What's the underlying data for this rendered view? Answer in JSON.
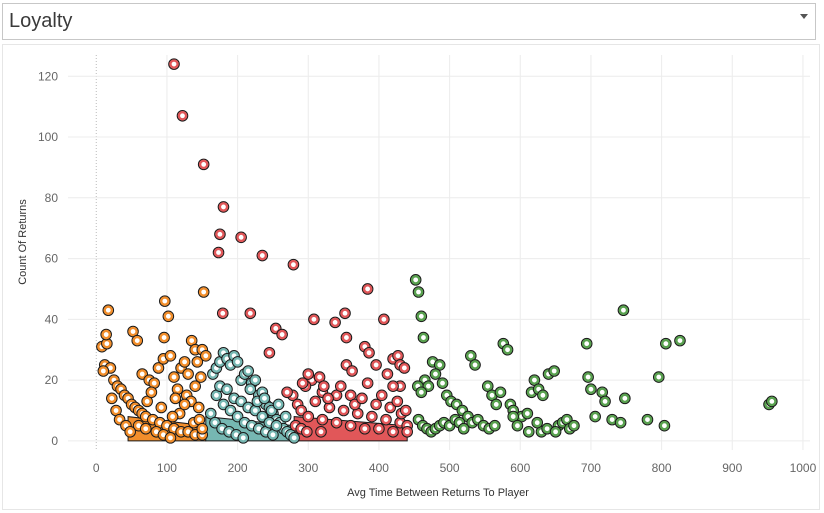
{
  "header": {
    "title": "Loyalty"
  },
  "colors": {
    "orange": "#f28e2b",
    "teal": "#76b7b2",
    "red": "#e15759",
    "green": "#59a14f",
    "outline": "#1a1a1a",
    "grid": "#ececec"
  },
  "chart_data": {
    "type": "scatter",
    "xlabel": "Avg Time Between Returns To Player",
    "ylabel": "Count Of Returns",
    "xlim": [
      -40,
      1010
    ],
    "ylim": [
      -3,
      127
    ],
    "x_ticks": [
      0,
      100,
      200,
      300,
      400,
      500,
      600,
      700,
      800,
      900,
      1000
    ],
    "y_ticks": [
      0,
      20,
      40,
      60,
      80,
      100,
      120
    ],
    "grid": true,
    "legend": "none",
    "series": [
      {
        "color_key": "orange",
        "points": [
          [
            8,
            31
          ],
          [
            12,
            25
          ],
          [
            15,
            32
          ],
          [
            14,
            35
          ],
          [
            17,
            43
          ],
          [
            20,
            24
          ],
          [
            10,
            23
          ],
          [
            25,
            20
          ],
          [
            30,
            18
          ],
          [
            35,
            17
          ],
          [
            40,
            15
          ],
          [
            45,
            14
          ],
          [
            50,
            12
          ],
          [
            55,
            11
          ],
          [
            60,
            10
          ],
          [
            65,
            9
          ],
          [
            70,
            8
          ],
          [
            80,
            7
          ],
          [
            90,
            6
          ],
          [
            100,
            5
          ],
          [
            110,
            4
          ],
          [
            120,
            3
          ],
          [
            130,
            3
          ],
          [
            140,
            2
          ],
          [
            150,
            2
          ],
          [
            52,
            36
          ],
          [
            58,
            33
          ],
          [
            65,
            22
          ],
          [
            75,
            20
          ],
          [
            82,
            19
          ],
          [
            88,
            24
          ],
          [
            95,
            27
          ],
          [
            96,
            34
          ],
          [
            97,
            46
          ],
          [
            102,
            41
          ],
          [
            105,
            28
          ],
          [
            110,
            21
          ],
          [
            115,
            17
          ],
          [
            120,
            24
          ],
          [
            125,
            26
          ],
          [
            130,
            22
          ],
          [
            135,
            33
          ],
          [
            140,
            30
          ],
          [
            143,
            26
          ],
          [
            148,
            21
          ],
          [
            152,
            49
          ],
          [
            150,
            30
          ],
          [
            155,
            28
          ],
          [
            128,
            15
          ],
          [
            134,
            13
          ],
          [
            145,
            11
          ],
          [
            60,
            5
          ],
          [
            70,
            4
          ],
          [
            85,
            3
          ],
          [
            95,
            2
          ],
          [
            105,
            1
          ],
          [
            118,
            9
          ],
          [
            138,
            6
          ],
          [
            22,
            14
          ],
          [
            28,
            10
          ],
          [
            33,
            7
          ],
          [
            42,
            5
          ],
          [
            48,
            3
          ],
          [
            72,
            13
          ],
          [
            78,
            16
          ],
          [
            92,
            11
          ],
          [
            108,
            8
          ],
          [
            112,
            14
          ],
          [
            125,
            12
          ],
          [
            140,
            18
          ],
          [
            146,
            7
          ],
          [
            150,
            4
          ]
        ]
      },
      {
        "color_key": "teal",
        "points": [
          [
            165,
            22
          ],
          [
            170,
            24
          ],
          [
            175,
            26
          ],
          [
            180,
            29
          ],
          [
            185,
            27
          ],
          [
            190,
            25
          ],
          [
            195,
            28
          ],
          [
            200,
            26
          ],
          [
            205,
            20
          ],
          [
            210,
            22
          ],
          [
            215,
            23
          ],
          [
            220,
            19
          ],
          [
            225,
            20
          ],
          [
            230,
            15
          ],
          [
            235,
            16
          ],
          [
            240,
            12
          ],
          [
            245,
            11
          ],
          [
            250,
            9
          ],
          [
            255,
            7
          ],
          [
            260,
            6
          ],
          [
            265,
            4
          ],
          [
            270,
            3
          ],
          [
            275,
            2
          ],
          [
            280,
            1
          ],
          [
            170,
            15
          ],
          [
            180,
            12
          ],
          [
            190,
            10
          ],
          [
            200,
            8
          ],
          [
            210,
            6
          ],
          [
            220,
            5
          ],
          [
            230,
            4
          ],
          [
            240,
            3
          ],
          [
            250,
            2
          ],
          [
            175,
            18
          ],
          [
            185,
            17
          ],
          [
            195,
            14
          ],
          [
            205,
            13
          ],
          [
            215,
            11
          ],
          [
            225,
            10
          ],
          [
            235,
            8
          ],
          [
            245,
            6
          ],
          [
            255,
            5
          ],
          [
            162,
            9
          ],
          [
            168,
            6
          ],
          [
            178,
            4
          ],
          [
            188,
            3
          ],
          [
            198,
            2
          ],
          [
            208,
            1
          ],
          [
            218,
            17
          ],
          [
            228,
            13
          ],
          [
            238,
            14
          ],
          [
            248,
            10
          ],
          [
            258,
            12
          ],
          [
            268,
            8
          ]
        ]
      },
      {
        "color_key": "red",
        "points": [
          [
            110,
            124
          ],
          [
            122,
            107
          ],
          [
            152,
            91
          ],
          [
            180,
            77
          ],
          [
            175,
            68
          ],
          [
            173,
            62
          ],
          [
            205,
            67
          ],
          [
            235,
            61
          ],
          [
            279,
            58
          ],
          [
            179,
            42
          ],
          [
            218,
            42
          ],
          [
            254,
            37
          ],
          [
            263,
            35
          ],
          [
            245,
            29
          ],
          [
            308,
            40
          ],
          [
            338,
            39
          ],
          [
            352,
            42
          ],
          [
            384,
            50
          ],
          [
            407,
            40
          ],
          [
            380,
            31
          ],
          [
            386,
            29
          ],
          [
            354,
            34
          ],
          [
            354,
            25
          ],
          [
            362,
            23
          ],
          [
            420,
            27
          ],
          [
            427,
            28
          ],
          [
            430,
            25
          ],
          [
            436,
            24
          ],
          [
            430,
            18
          ],
          [
            420,
            18
          ],
          [
            384,
            19
          ],
          [
            360,
            15
          ],
          [
            340,
            15
          ],
          [
            320,
            16
          ],
          [
            305,
            20
          ],
          [
            300,
            22
          ],
          [
            296,
            18
          ],
          [
            278,
            15
          ],
          [
            285,
            12
          ],
          [
            290,
            10
          ],
          [
            292,
            19
          ],
          [
            270,
            16
          ],
          [
            310,
            13
          ],
          [
            330,
            11
          ],
          [
            350,
            10
          ],
          [
            370,
            9
          ],
          [
            390,
            8
          ],
          [
            410,
            7
          ],
          [
            430,
            6
          ],
          [
            440,
            5
          ],
          [
            300,
            8
          ],
          [
            320,
            7
          ],
          [
            340,
            6
          ],
          [
            360,
            5
          ],
          [
            380,
            4
          ],
          [
            400,
            4
          ],
          [
            420,
            3
          ],
          [
            440,
            3
          ],
          [
            282,
            5
          ],
          [
            290,
            4
          ],
          [
            298,
            3
          ],
          [
            318,
            3
          ],
          [
            328,
            14
          ],
          [
            346,
            18
          ],
          [
            366,
            12
          ],
          [
            376,
            14
          ],
          [
            396,
            12
          ],
          [
            404,
            15
          ],
          [
            416,
            11
          ],
          [
            426,
            13
          ],
          [
            432,
            9
          ],
          [
            438,
            10
          ],
          [
            316,
            21
          ],
          [
            322,
            18
          ],
          [
            396,
            25
          ],
          [
            412,
            22
          ]
        ]
      },
      {
        "color_key": "green",
        "points": [
          [
            452,
            53
          ],
          [
            456,
            49
          ],
          [
            460,
            41
          ],
          [
            463,
            34
          ],
          [
            476,
            26
          ],
          [
            486,
            25
          ],
          [
            465,
            20
          ],
          [
            470,
            18
          ],
          [
            455,
            18
          ],
          [
            460,
            16
          ],
          [
            480,
            22
          ],
          [
            490,
            19
          ],
          [
            496,
            15
          ],
          [
            502,
            13
          ],
          [
            510,
            12
          ],
          [
            518,
            10
          ],
          [
            526,
            8
          ],
          [
            532,
            6
          ],
          [
            540,
            7
          ],
          [
            548,
            5
          ],
          [
            556,
            4
          ],
          [
            564,
            5
          ],
          [
            456,
            7
          ],
          [
            462,
            5
          ],
          [
            468,
            4
          ],
          [
            474,
            3
          ],
          [
            480,
            4
          ],
          [
            486,
            5
          ],
          [
            492,
            6
          ],
          [
            500,
            5
          ],
          [
            508,
            7
          ],
          [
            514,
            6
          ],
          [
            520,
            4
          ],
          [
            530,
            28
          ],
          [
            536,
            25
          ],
          [
            554,
            18
          ],
          [
            560,
            15
          ],
          [
            566,
            12
          ],
          [
            572,
            16
          ],
          [
            576,
            32
          ],
          [
            582,
            30
          ],
          [
            586,
            12
          ],
          [
            590,
            10
          ],
          [
            602,
            8
          ],
          [
            610,
            9
          ],
          [
            616,
            16
          ],
          [
            620,
            20
          ],
          [
            626,
            17
          ],
          [
            632,
            15
          ],
          [
            640,
            22
          ],
          [
            648,
            23
          ],
          [
            654,
            5
          ],
          [
            660,
            6
          ],
          [
            666,
            7
          ],
          [
            670,
            4
          ],
          [
            676,
            5
          ],
          [
            630,
            3
          ],
          [
            638,
            4
          ],
          [
            650,
            3
          ],
          [
            694,
            32
          ],
          [
            696,
            21
          ],
          [
            700,
            17
          ],
          [
            706,
            8
          ],
          [
            716,
            16
          ],
          [
            720,
            13
          ],
          [
            730,
            7
          ],
          [
            742,
            6
          ],
          [
            746,
            43
          ],
          [
            748,
            14
          ],
          [
            780,
            7
          ],
          [
            796,
            21
          ],
          [
            804,
            5
          ],
          [
            806,
            32
          ],
          [
            826,
            33
          ],
          [
            952,
            12
          ],
          [
            956,
            13
          ],
          [
            590,
            8
          ],
          [
            596,
            5
          ],
          [
            612,
            3
          ],
          [
            624,
            6
          ]
        ]
      }
    ]
  }
}
